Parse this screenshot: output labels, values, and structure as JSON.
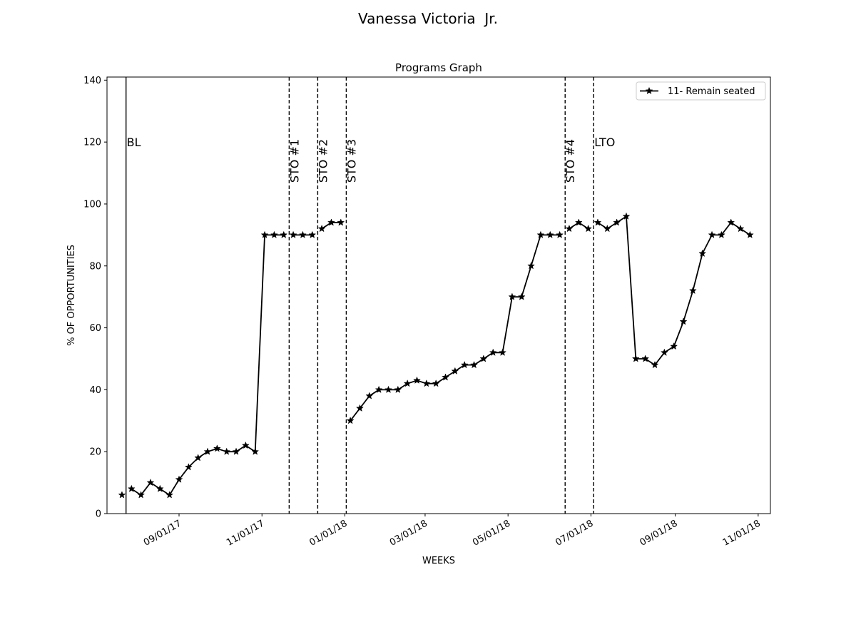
{
  "figure_title": "Vanessa Victoria  Jr.",
  "chart_data": {
    "type": "line",
    "title": "Programs Graph",
    "xlabel": "WEEKS",
    "ylabel": "% OF OPPORTUNITIES",
    "ylim": [
      0,
      141
    ],
    "xlim": [
      "2017-07-10",
      "2018-11-10"
    ],
    "yticks": [
      0,
      20,
      40,
      60,
      80,
      100,
      120,
      140
    ],
    "xticks": [
      {
        "date": "2017-09-01",
        "label": "09/01/17"
      },
      {
        "date": "2017-11-01",
        "label": "11/01/17"
      },
      {
        "date": "2018-01-01",
        "label": "01/01/18"
      },
      {
        "date": "2018-03-01",
        "label": "03/01/18"
      },
      {
        "date": "2018-05-01",
        "label": "05/01/18"
      },
      {
        "date": "2018-07-01",
        "label": "07/01/18"
      },
      {
        "date": "2018-09-01",
        "label": "09/01/18"
      },
      {
        "date": "2018-11-01",
        "label": "11/01/18"
      }
    ],
    "grid": false,
    "legend_position": "top-right",
    "series": [
      {
        "name": "11- Remain seated",
        "color": "#000000",
        "marker": "star",
        "segments": [
          [
            [
              "2017-07-21",
              6
            ]
          ],
          [
            [
              "2017-07-28",
              8
            ],
            [
              "2017-08-04",
              6
            ],
            [
              "2017-08-11",
              10
            ],
            [
              "2017-08-18",
              8
            ],
            [
              "2017-08-25",
              6
            ],
            [
              "2017-09-01",
              11
            ],
            [
              "2017-09-08",
              15
            ],
            [
              "2017-09-15",
              18
            ],
            [
              "2017-09-22",
              20
            ],
            [
              "2017-09-29",
              21
            ],
            [
              "2017-10-06",
              20
            ],
            [
              "2017-10-13",
              20
            ],
            [
              "2017-10-20",
              22
            ],
            [
              "2017-10-27",
              20
            ],
            [
              "2017-11-03",
              90
            ],
            [
              "2017-11-10",
              90
            ],
            [
              "2017-11-17",
              90
            ]
          ],
          [
            [
              "2017-11-24",
              90
            ],
            [
              "2017-12-01",
              90
            ],
            [
              "2017-12-08",
              90
            ]
          ],
          [
            [
              "2017-12-15",
              92
            ],
            [
              "2017-12-22",
              94
            ],
            [
              "2017-12-29",
              94
            ]
          ],
          [
            [
              "2018-01-05",
              30
            ],
            [
              "2018-01-12",
              34
            ],
            [
              "2018-01-19",
              38
            ],
            [
              "2018-01-26",
              40
            ],
            [
              "2018-02-02",
              40
            ],
            [
              "2018-02-09",
              40
            ],
            [
              "2018-02-16",
              42
            ],
            [
              "2018-02-23",
              43
            ],
            [
              "2018-03-02",
              42
            ],
            [
              "2018-03-09",
              42
            ],
            [
              "2018-03-16",
              44
            ],
            [
              "2018-03-23",
              46
            ],
            [
              "2018-03-30",
              48
            ],
            [
              "2018-04-06",
              48
            ],
            [
              "2018-04-13",
              50
            ],
            [
              "2018-04-20",
              52
            ],
            [
              "2018-04-27",
              52
            ],
            [
              "2018-05-04",
              70
            ],
            [
              "2018-05-11",
              70
            ],
            [
              "2018-05-18",
              80
            ],
            [
              "2018-05-25",
              90
            ],
            [
              "2018-06-01",
              90
            ],
            [
              "2018-06-08",
              90
            ]
          ],
          [
            [
              "2018-06-15",
              92
            ],
            [
              "2018-06-22",
              94
            ],
            [
              "2018-06-29",
              92
            ]
          ],
          [
            [
              "2018-07-06",
              94
            ],
            [
              "2018-07-13",
              92
            ],
            [
              "2018-07-20",
              94
            ],
            [
              "2018-07-27",
              96
            ],
            [
              "2018-08-03",
              50
            ],
            [
              "2018-08-10",
              50
            ],
            [
              "2018-08-17",
              48
            ],
            [
              "2018-08-24",
              52
            ],
            [
              "2018-08-31",
              54
            ],
            [
              "2018-09-07",
              62
            ],
            [
              "2018-09-14",
              72
            ],
            [
              "2018-09-21",
              84
            ],
            [
              "2018-09-28",
              90
            ],
            [
              "2018-10-05",
              90
            ],
            [
              "2018-10-12",
              94
            ],
            [
              "2018-10-19",
              92
            ],
            [
              "2018-10-26",
              90
            ]
          ]
        ]
      }
    ],
    "phase_lines": [
      {
        "date": "2017-07-24",
        "label": "BL",
        "style": "solid",
        "orientation": "horizontal"
      },
      {
        "date": "2017-11-21",
        "label": "STO #1",
        "style": "dashed",
        "orientation": "vertical"
      },
      {
        "date": "2017-12-12",
        "label": "STO #2",
        "style": "dashed",
        "orientation": "vertical"
      },
      {
        "date": "2018-01-02",
        "label": "STO #3",
        "style": "dashed",
        "orientation": "vertical"
      },
      {
        "date": "2018-06-12",
        "label": "STO #4",
        "style": "dashed",
        "orientation": "vertical"
      },
      {
        "date": "2018-07-03",
        "label": "LTO",
        "style": "dashed",
        "orientation": "horizontal"
      }
    ],
    "phase_label_y": 120
  }
}
